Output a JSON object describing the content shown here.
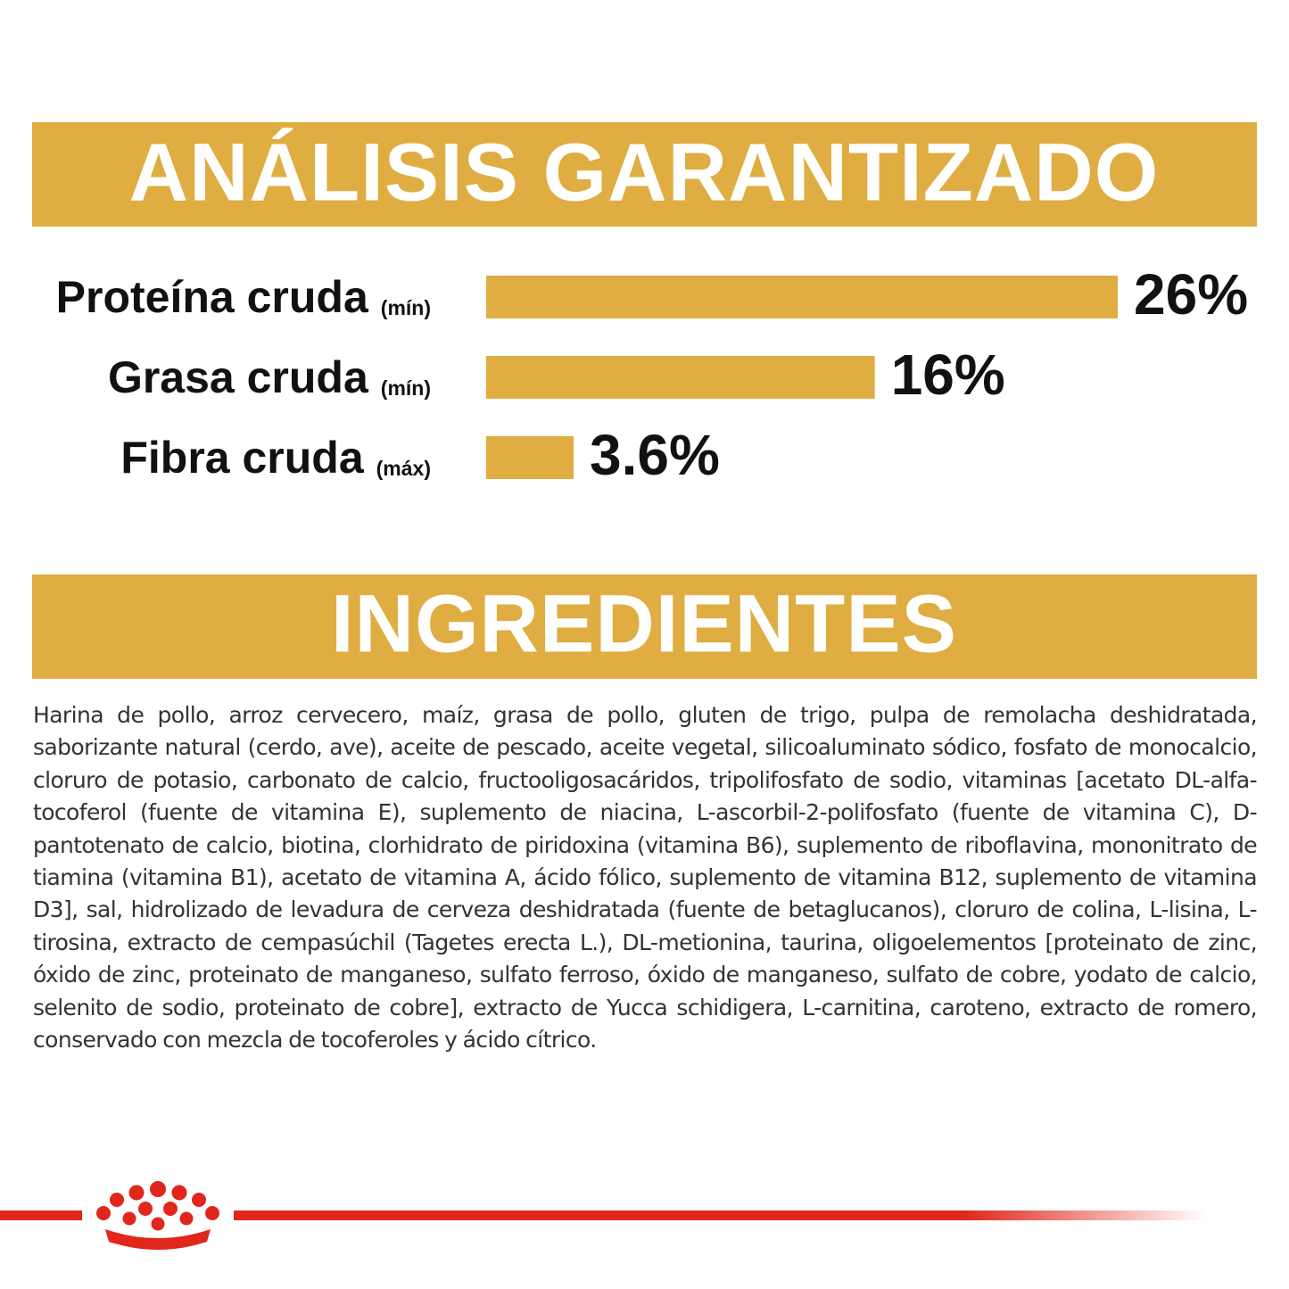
{
  "chart_data": {
    "type": "bar",
    "orientation": "horizontal",
    "title": "ANÁLISIS GARANTIZADO",
    "categories": [
      "Proteína cruda",
      "Grasa cruda",
      "Fibra cruda"
    ],
    "qualifiers": [
      "(mín)",
      "(mín)",
      "(máx)"
    ],
    "values": [
      26,
      16,
      3.6
    ],
    "value_labels": [
      "26%",
      "16%",
      "3.6%"
    ],
    "color": "#dfad42"
  },
  "ingredients": {
    "title": "INGREDIENTES",
    "text": "Harina de pollo, arroz cervecero, maíz, grasa de pollo, gluten de trigo, pulpa de remolacha deshidratada, saborizante natural (cerdo, ave), aceite de pescado, aceite vegetal, silicoaluminato sódico, fosfato de monocalcio, cloruro de potasio, carbonato de calcio, fructooligosacáridos, tripolifosfato de sodio, vitaminas [acetato DL-alfa-tocoferol (fuente de vitamina E), suplemento de niacina, L-ascorbil-2-polifosfato (fuente de vitamina C), D-pantotenato de calcio, biotina, clorhidrato de piridoxina (vitamina B6), suplemento de riboflavina, mononitrato de tiamina (vitamina B1), acetato de vitamina A, ácido fólico, suplemento de vitamina B12, suplemento de vitamina D3], sal, hidrolizado de levadura de cerveza deshidratada (fuente de betaglucanos), cloruro de colina, L-lisina, L-tirosina, extracto de cempasúchil (Tagetes erecta L.), DL-metionina, taurina, oligoelementos [proteinato de zinc, óxido de zinc, proteinato de manganeso, sulfato ferroso, óxido de manganeso, sulfato de cobre, yodato de calcio, selenito de sodio, proteinato de cobre], extracto de Yucca schidigera, L-carnitina, caroteno, extracto de romero, conservado con mezcla de tocoferoles y ácido cítrico."
  }
}
